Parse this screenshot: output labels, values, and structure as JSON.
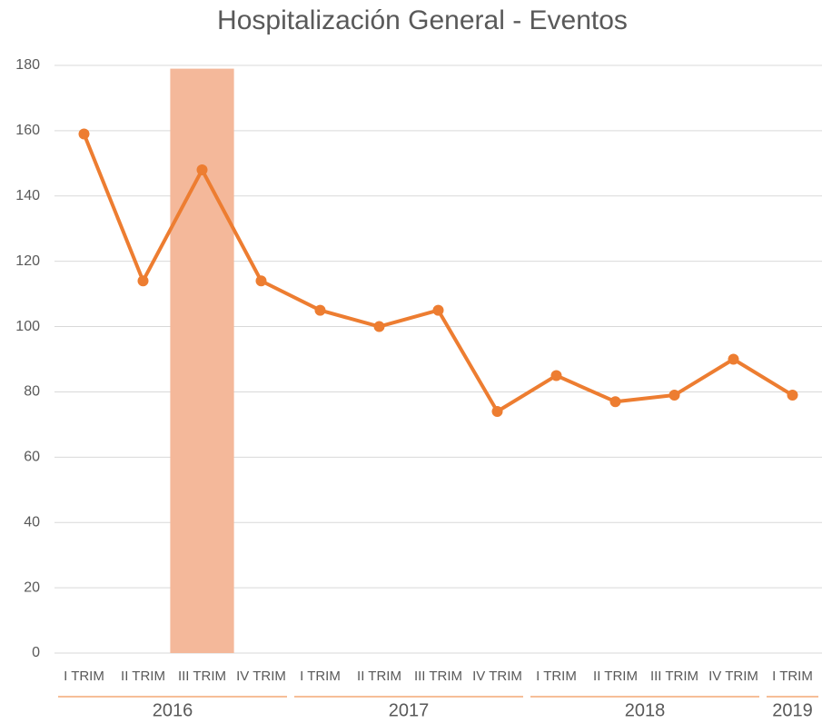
{
  "chart_data": {
    "type": "line",
    "title": "Hospitalización General - Eventos",
    "categories": [
      "I TRIM",
      "II TRIM",
      "III TRIM",
      "IV TRIM",
      "I TRIM",
      "II TRIM",
      "III TRIM",
      "IV TRIM",
      "I TRIM",
      "II TRIM",
      "III TRIM",
      "IV TRIM",
      "I TRIM"
    ],
    "year_groups": [
      {
        "label": "2016",
        "count": 4
      },
      {
        "label": "2017",
        "count": 4
      },
      {
        "label": "2018",
        "count": 4
      },
      {
        "label": "2019",
        "count": 1
      }
    ],
    "series": [
      {
        "type": "bar",
        "color": "#f4b89a",
        "values": [
          null,
          null,
          179,
          null,
          null,
          null,
          null,
          null,
          null,
          null,
          null,
          null,
          null
        ]
      },
      {
        "type": "line",
        "color": "#ed7d31",
        "values": [
          159,
          114,
          148,
          114,
          105,
          100,
          105,
          74,
          85,
          77,
          79,
          90,
          79
        ]
      }
    ],
    "ylim": [
      0,
      180
    ],
    "yticks": [
      0,
      20,
      40,
      60,
      80,
      100,
      120,
      140,
      160,
      180
    ],
    "grid": true
  }
}
